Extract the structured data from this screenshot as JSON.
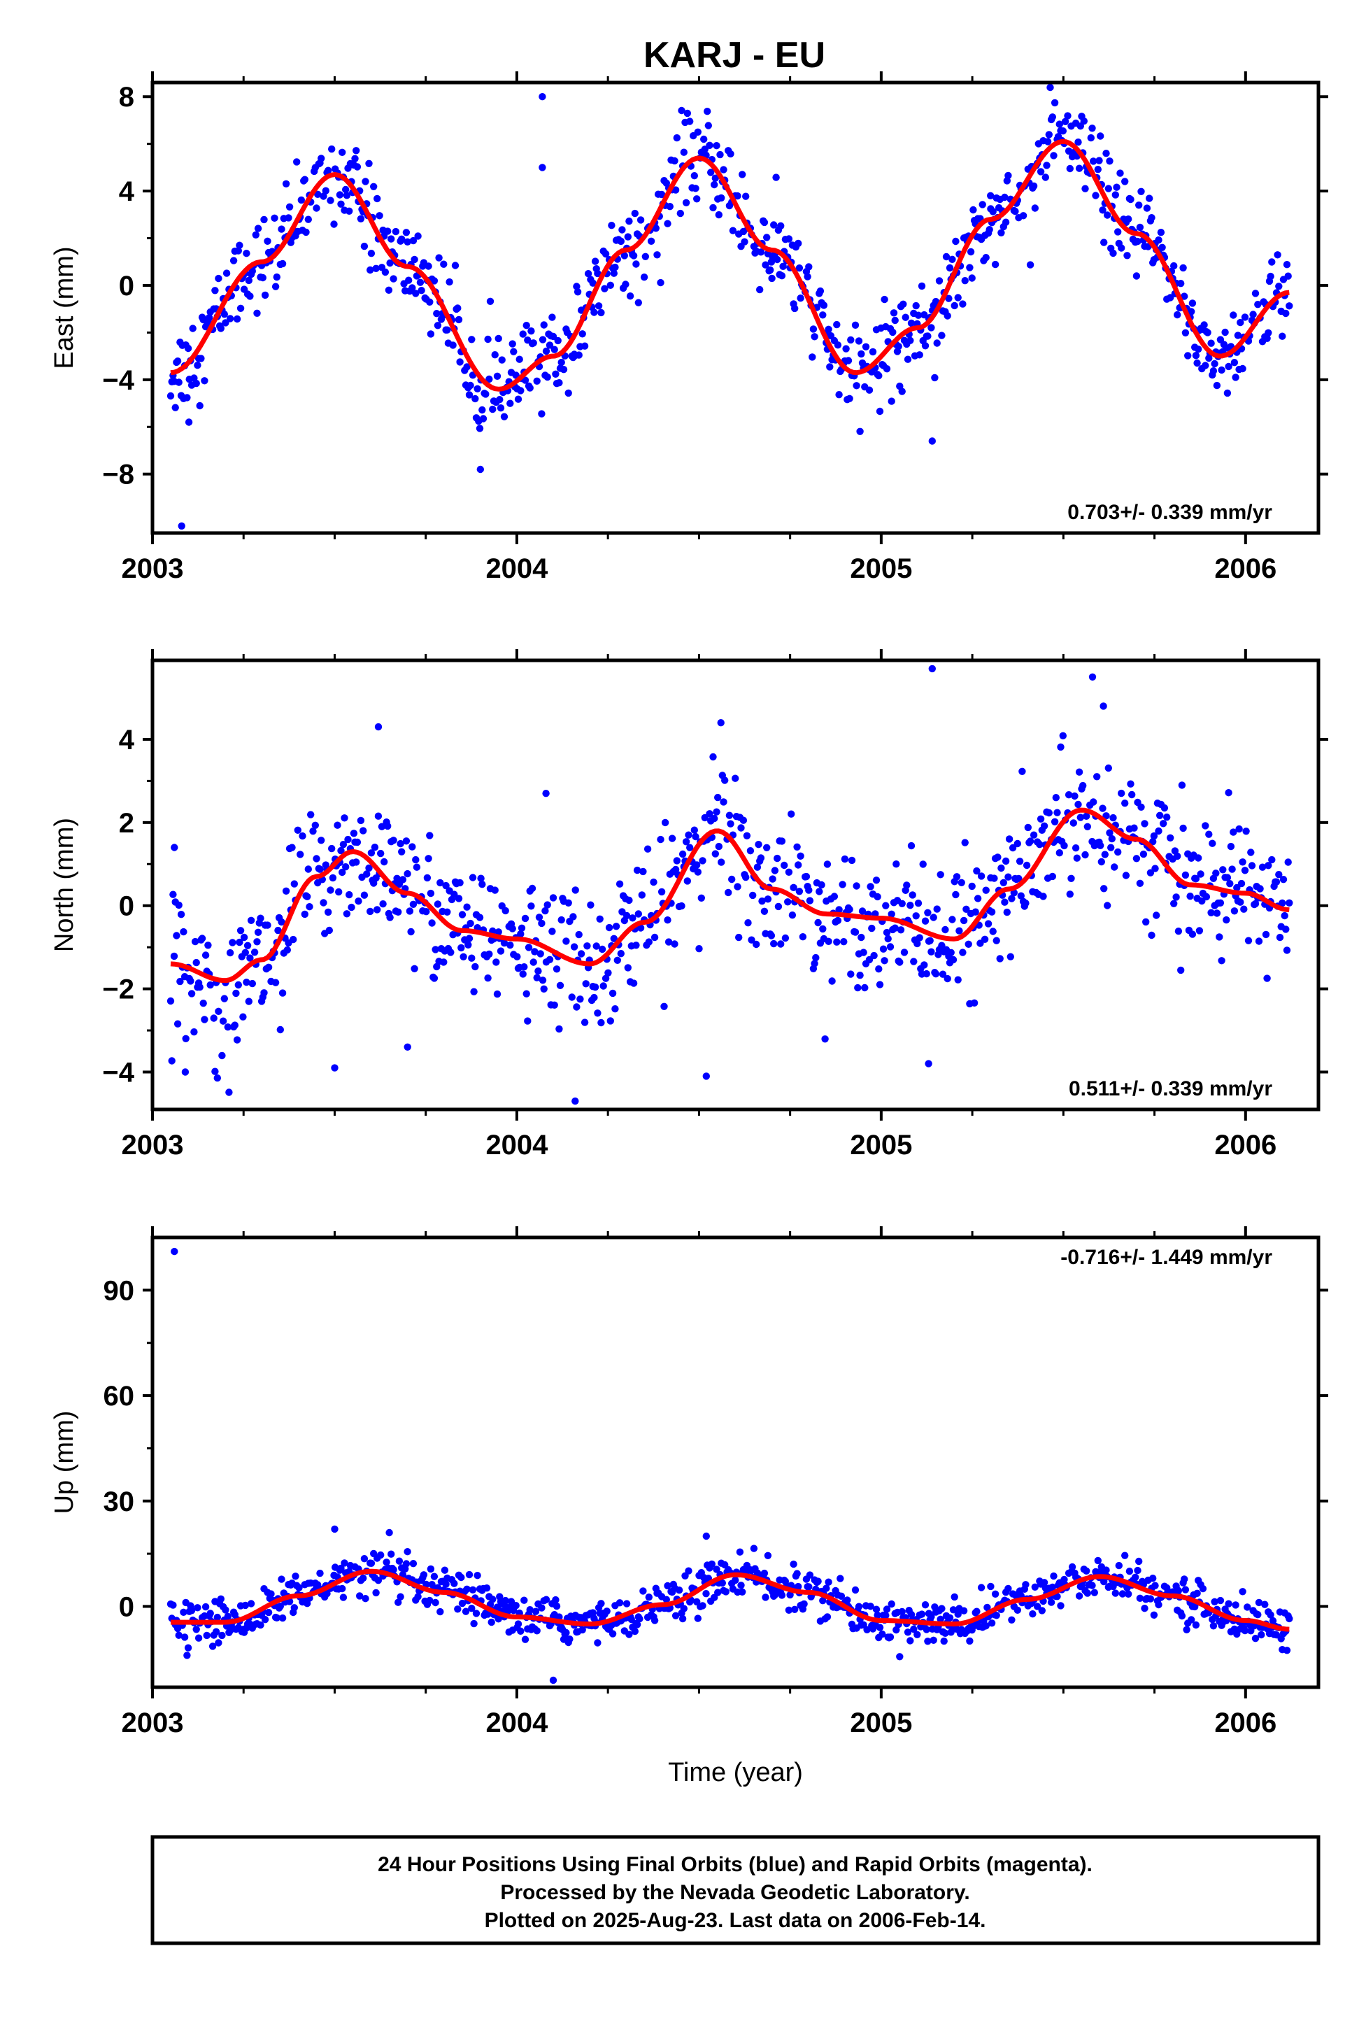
{
  "title": "KARJ - EU",
  "colors": {
    "points": "#0000ff",
    "fit": "#ff0000",
    "frame": "#000000"
  },
  "chart_data": [
    {
      "type": "scatter",
      "ylabel": "East (mm)",
      "xlabel": "",
      "xlim": [
        2003.0,
        2006.2
      ],
      "ylim": [
        -10.5,
        8.6
      ],
      "xticks": [
        2003,
        2004,
        2005,
        2006
      ],
      "xtick_labels": [
        "2003",
        "2004",
        "2005",
        "2006"
      ],
      "yticks": [
        -8,
        -4,
        0,
        4,
        8
      ],
      "ytick_labels": [
        "−8",
        "−4",
        "0",
        "4",
        "8"
      ],
      "rate": "0.703+/- 0.339 mm/yr",
      "rate_position": "bottom-right",
      "data_start": 2003.05,
      "data_end": 2006.12,
      "fit_line": {
        "x": [
          2003.05,
          2003.3,
          2003.5,
          2003.7,
          2003.95,
          2004.1,
          2004.3,
          2004.5,
          2004.7,
          2004.93,
          2005.1,
          2005.3,
          2005.5,
          2005.7,
          2005.93,
          2006.12
        ],
        "y": [
          -3.7,
          1.0,
          4.7,
          0.8,
          -4.4,
          -3.0,
          1.5,
          5.4,
          1.5,
          -3.7,
          -1.8,
          2.8,
          6.1,
          2.2,
          -3.0,
          -0.3
        ]
      },
      "outliers": {
        "x": [
          2003.08,
          2003.1,
          2004.07,
          2004.07,
          2005.14,
          2004.7,
          2003.9,
          2005.3
        ],
        "y": [
          -10.2,
          -5.8,
          8.0,
          5.0,
          -6.6,
          0.3,
          -7.8,
          3.8
        ]
      }
    },
    {
      "type": "scatter",
      "ylabel": "North (mm)",
      "xlabel": "",
      "xlim": [
        2003.0,
        2006.2
      ],
      "ylim": [
        -4.9,
        5.9
      ],
      "xticks": [
        2003,
        2004,
        2005,
        2006
      ],
      "xtick_labels": [
        "2003",
        "2004",
        "2005",
        "2006"
      ],
      "yticks": [
        -4,
        -2,
        0,
        2,
        4
      ],
      "ytick_labels": [
        "−4",
        "−2",
        "0",
        "2",
        "4"
      ],
      "rate": "0.511+/- 0.339 mm/yr",
      "rate_position": "bottom-right",
      "data_start": 2003.05,
      "data_end": 2006.12,
      "fit_line": {
        "x": [
          2003.05,
          2003.2,
          2003.3,
          2003.45,
          2003.55,
          2003.7,
          2003.85,
          2004.0,
          2004.2,
          2004.35,
          2004.55,
          2004.7,
          2004.85,
          2005.0,
          2005.2,
          2005.35,
          2005.55,
          2005.7,
          2005.85,
          2006.0,
          2006.12
        ],
        "y": [
          -1.4,
          -1.8,
          -1.3,
          0.7,
          1.3,
          0.3,
          -0.6,
          -0.8,
          -1.4,
          -0.4,
          1.8,
          0.4,
          -0.2,
          -0.3,
          -0.8,
          0.4,
          2.3,
          1.6,
          0.5,
          0.3,
          -0.1
        ]
      },
      "outliers": {
        "x": [
          2003.06,
          2003.09,
          2003.5,
          2003.62,
          2003.7,
          2004.08,
          2004.16,
          2004.52,
          2004.56,
          2005.14,
          2005.13,
          2005.58,
          2005.61
        ],
        "y": [
          1.4,
          -4.0,
          -3.9,
          4.3,
          -3.4,
          2.7,
          -4.7,
          -4.1,
          4.4,
          5.7,
          -3.8,
          5.5,
          4.8
        ]
      }
    },
    {
      "type": "scatter",
      "ylabel": "Up (mm)",
      "xlabel": "Time (year)",
      "xlim": [
        2003.0,
        2006.2
      ],
      "ylim": [
        -23,
        105
      ],
      "xticks": [
        2003,
        2004,
        2005,
        2006
      ],
      "xtick_labels": [
        "2003",
        "2004",
        "2005",
        "2006"
      ],
      "yticks": [
        0,
        30,
        60,
        90
      ],
      "ytick_labels": [
        "0",
        "30",
        "60",
        "90"
      ],
      "rate": "-0.716+/- 1.449 mm/yr",
      "rate_position": "top-right",
      "data_start": 2003.05,
      "data_end": 2006.12,
      "fit_line": {
        "x": [
          2003.05,
          2003.2,
          2003.4,
          2003.6,
          2003.8,
          2004.0,
          2004.2,
          2004.4,
          2004.6,
          2004.8,
          2005.0,
          2005.2,
          2005.4,
          2005.6,
          2005.8,
          2006.0,
          2006.12
        ],
        "y": [
          -4.5,
          -4.5,
          3.0,
          10.0,
          4.0,
          -3.0,
          -5.0,
          0.5,
          9.0,
          4.0,
          -4.0,
          -5.0,
          2.0,
          8.5,
          3.0,
          -4.0,
          -6.5
        ]
      },
      "outliers": {
        "x": [
          2003.06,
          2004.1,
          2003.5,
          2004.52,
          2003.65
        ],
        "y": [
          101,
          -21,
          22,
          20,
          21
        ]
      }
    }
  ],
  "footer": {
    "line1": "24 Hour Positions Using Final Orbits (blue) and Rapid Orbits (magenta).",
    "line2": "Processed by the Nevada Geodetic Laboratory.",
    "line3": "Plotted on 2025-Aug-23. Last data on 2006-Feb-14."
  }
}
